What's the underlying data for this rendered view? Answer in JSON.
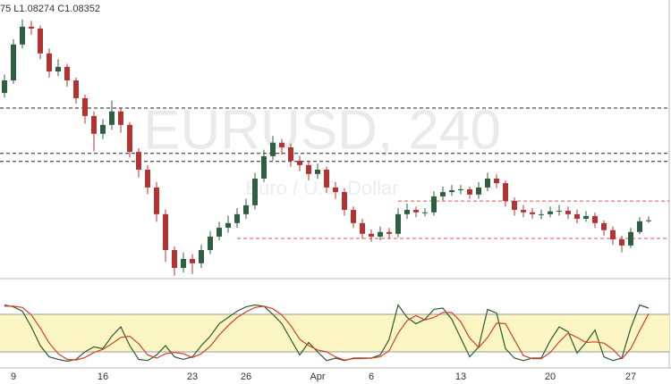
{
  "chart_data": [
    {
      "type": "candlestick",
      "header": "75 L1.08274 C1.08352",
      "watermark": "EURUSD, 240",
      "watermark_subtitle": "Euro / U.S. Dollar",
      "categories": [
        null,
        "9",
        null,
        null,
        null,
        null,
        null,
        null,
        null,
        null,
        null,
        "16",
        null,
        null,
        null,
        null,
        null,
        null,
        null,
        null,
        null,
        "23",
        null,
        null,
        null,
        null,
        null,
        "26",
        null,
        null,
        null,
        null,
        null,
        null,
        null,
        "Apr",
        null,
        null,
        null,
        null,
        null,
        "6",
        null,
        null,
        null,
        null,
        null,
        null,
        null,
        null,
        null,
        "13",
        null,
        null,
        null,
        null,
        null,
        null,
        null,
        null,
        null,
        "20",
        null,
        null,
        null,
        null,
        null,
        null,
        null,
        null,
        "27",
        null,
        null
      ],
      "open": [
        1.125,
        1.1291,
        1.1408,
        1.1466,
        1.146,
        1.1379,
        1.132,
        1.1335,
        1.1291,
        1.1233,
        1.1175,
        1.1117,
        1.1146,
        1.119,
        1.1146,
        1.1058,
        1.1,
        1.0942,
        1.0855,
        1.0738,
        1.068,
        1.0709,
        1.0695,
        1.0738,
        1.0782,
        1.0811,
        1.0826,
        1.0855,
        1.0884,
        1.0971,
        1.1044,
        1.1088,
        1.1073,
        1.1029,
        1.1015,
        1.0986,
        1.1,
        1.0942,
        1.0927,
        1.0869,
        1.0826,
        1.0791,
        1.0782,
        1.0797,
        1.0791,
        1.0855,
        1.0869,
        1.0861,
        1.0861,
        1.0913,
        1.0927,
        1.0933,
        1.0936,
        1.0919,
        1.0942,
        1.0971,
        1.0956,
        1.0898,
        1.0869,
        1.0861,
        1.0855,
        1.0855,
        1.0864,
        1.0866,
        1.0855,
        1.084,
        1.0849,
        1.0826,
        1.0803,
        1.0773,
        1.0753,
        1.0797,
        1.0832
      ],
      "high": [
        1.131,
        1.1425,
        1.149,
        1.1485,
        1.147,
        1.1395,
        1.136,
        1.1345,
        1.13,
        1.1245,
        1.119,
        1.1165,
        1.1225,
        1.12,
        1.1155,
        1.107,
        1.1015,
        1.096,
        1.087,
        1.075,
        1.073,
        1.0725,
        1.0755,
        1.08,
        1.083,
        1.085,
        1.0875,
        1.0905,
        1.099,
        1.1065,
        1.111,
        1.11,
        1.1085,
        1.1045,
        1.103,
        1.102,
        1.101,
        1.096,
        1.094,
        1.088,
        1.084,
        1.0805,
        1.0815,
        1.081,
        1.0875,
        1.089,
        1.088,
        1.0875,
        1.093,
        1.0945,
        1.095,
        1.095,
        1.0945,
        1.096,
        1.099,
        1.0985,
        1.0965,
        1.091,
        1.0885,
        1.0875,
        1.087,
        1.088,
        1.0885,
        1.088,
        1.087,
        1.0865,
        1.086,
        1.0835,
        1.0815,
        1.0785,
        1.081,
        1.0845,
        1.0848
      ],
      "low": [
        1.1235,
        1.128,
        1.1395,
        1.144,
        1.136,
        1.13,
        1.1305,
        1.127,
        1.1215,
        1.115,
        1.106,
        1.11,
        1.113,
        1.112,
        1.104,
        1.0975,
        1.092,
        1.083,
        1.07,
        1.0655,
        1.0665,
        1.066,
        1.068,
        1.0725,
        1.077,
        1.0795,
        1.081,
        1.084,
        1.087,
        1.096,
        1.103,
        1.105,
        1.101,
        1.0995,
        1.0965,
        1.097,
        1.0925,
        1.0905,
        1.085,
        1.081,
        1.0775,
        1.0765,
        1.077,
        1.0775,
        1.078,
        1.084,
        1.0845,
        1.0848,
        1.085,
        1.09,
        1.0915,
        1.092,
        1.0905,
        1.0905,
        1.093,
        1.094,
        1.088,
        1.085,
        1.0845,
        1.084,
        1.0838,
        1.0845,
        1.085,
        1.084,
        1.0825,
        1.083,
        1.081,
        1.0785,
        1.0755,
        1.073,
        1.0745,
        1.079,
        1.0827
      ],
      "close": [
        1.1291,
        1.1408,
        1.1466,
        1.146,
        1.1379,
        1.132,
        1.1335,
        1.1291,
        1.1233,
        1.1175,
        1.1117,
        1.1146,
        1.119,
        1.1146,
        1.1058,
        1.1,
        1.0942,
        1.0855,
        1.0738,
        1.068,
        1.0709,
        1.0695,
        1.0738,
        1.0782,
        1.0811,
        1.0826,
        1.0855,
        1.0884,
        1.0971,
        1.1044,
        1.1088,
        1.1073,
        1.1029,
        1.1015,
        1.0986,
        1.1,
        1.0942,
        1.0927,
        1.0869,
        1.0826,
        1.0791,
        1.0782,
        1.0797,
        1.0791,
        1.0855,
        1.0869,
        1.0861,
        1.0861,
        1.0913,
        1.0927,
        1.0933,
        1.0936,
        1.0919,
        1.0942,
        1.0971,
        1.0956,
        1.0898,
        1.0869,
        1.0861,
        1.0855,
        1.0855,
        1.0864,
        1.0866,
        1.0855,
        1.084,
        1.0849,
        1.0826,
        1.0803,
        1.0773,
        1.0753,
        1.0797,
        1.0832,
        1.0835
      ],
      "up_color": "#2f5f3f",
      "down_color": "#b03434",
      "ylim": [
        1.0645,
        1.1553
      ],
      "levels": [
        {
          "value": 1.1201,
          "color": "#222222"
        },
        {
          "value": 1.1053,
          "color": "#222222"
        },
        {
          "value": 1.1027,
          "color": "#222222"
        },
        {
          "value": 1.0898,
          "color": "#e05050",
          "from_index": 44
        },
        {
          "value": 1.0776,
          "color": "#e05050",
          "from_index": 26
        }
      ]
    },
    {
      "type": "line",
      "ylim": [
        0,
        100
      ],
      "band": [
        20,
        80
      ],
      "band_color": "#fbf6c4",
      "series": [
        {
          "color": "#2d5a2d",
          "values": [
            95,
            92,
            85,
            60,
            30,
            12,
            8,
            5,
            8,
            20,
            28,
            25,
            45,
            60,
            30,
            8,
            6,
            15,
            30,
            12,
            8,
            12,
            30,
            45,
            65,
            75,
            85,
            92,
            95,
            93,
            80,
            65,
            40,
            15,
            35,
            20,
            6,
            10,
            6,
            10,
            10,
            10,
            15,
            40,
            95,
            75,
            65,
            72,
            88,
            90,
            72,
            42,
            12,
            28,
            88,
            82,
            25,
            10,
            6,
            10,
            10,
            38,
            60,
            52,
            18,
            35,
            55,
            12,
            6,
            10,
            58,
            95,
            90
          ]
        },
        {
          "color": "#d8402c",
          "values": [
            93,
            93,
            91,
            79,
            58,
            34,
            17,
            8,
            7,
            11,
            19,
            24,
            33,
            43,
            45,
            33,
            15,
            10,
            17,
            19,
            17,
            11,
            17,
            29,
            47,
            62,
            75,
            84,
            91,
            93,
            89,
            79,
            62,
            40,
            30,
            23,
            20,
            12,
            7,
            9,
            9,
            10,
            12,
            22,
            50,
            70,
            78,
            71,
            75,
            83,
            83,
            68,
            42,
            27,
            43,
            66,
            65,
            39,
            14,
            9,
            9,
            19,
            36,
            50,
            43,
            35,
            36,
            34,
            24,
            9,
            25,
            54,
            81
          ]
        }
      ]
    }
  ]
}
